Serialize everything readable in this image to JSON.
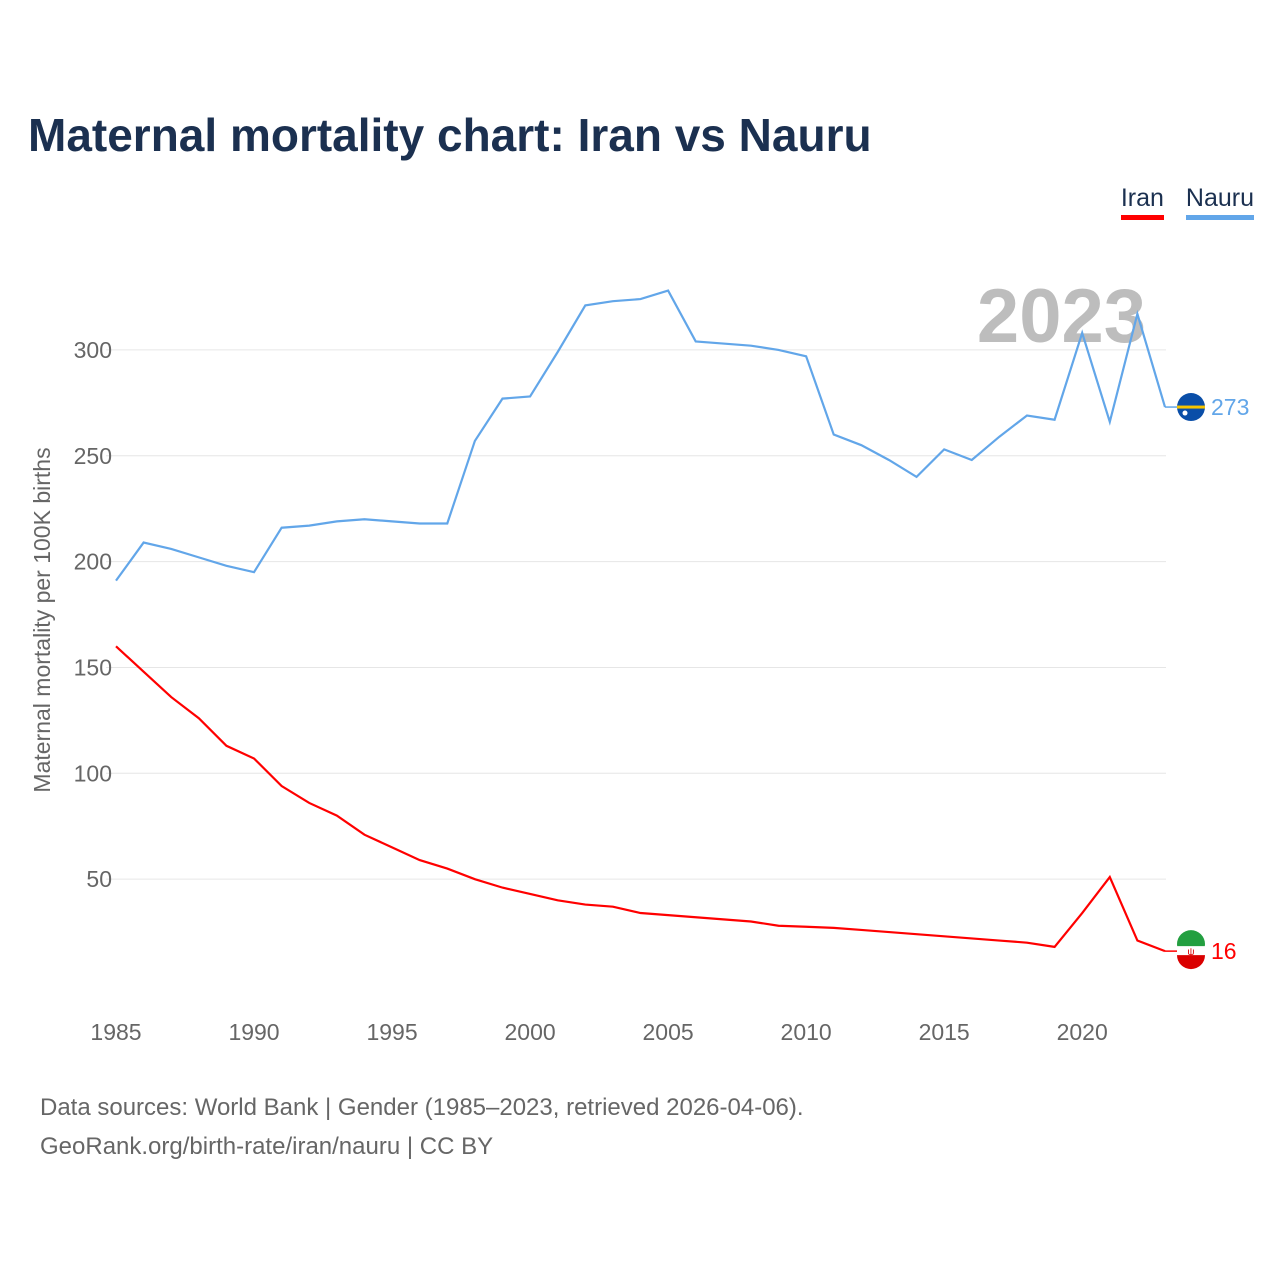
{
  "title": "Maternal mortality chart: Iran vs Nauru",
  "source_line1": "Data sources: World Bank | Gender (1985–2023, retrieved 2026-04-06).",
  "source_line2": "GeoRank.org/birth-rate/iran/nauru | CC BY",
  "chart_data": {
    "type": "line",
    "title": "Maternal mortality chart: Iran vs Nauru",
    "ylabel": "Maternal mortality per 100K births",
    "xlabel": "",
    "year_watermark": "2023",
    "x": [
      1985,
      1986,
      1987,
      1988,
      1989,
      1990,
      1991,
      1992,
      1993,
      1994,
      1995,
      1996,
      1997,
      1998,
      1999,
      2000,
      2001,
      2002,
      2003,
      2004,
      2005,
      2006,
      2007,
      2008,
      2009,
      2010,
      2011,
      2012,
      2013,
      2014,
      2015,
      2016,
      2017,
      2018,
      2019,
      2020,
      2021,
      2022,
      2023
    ],
    "xticks": [
      "1985",
      "1990",
      "1995",
      "2000",
      "2005",
      "2010",
      "2015",
      "2020"
    ],
    "yticks": [
      "50",
      "100",
      "150",
      "200",
      "250",
      "300"
    ],
    "ylim": [
      0,
      330
    ],
    "xlim": [
      1985,
      2023
    ],
    "grid": true,
    "legend_placement": "top-right",
    "series": [
      {
        "name": "Iran",
        "color": "#ff0000",
        "end_label": "16",
        "flag": "iran-flag",
        "values": [
          160,
          148,
          136,
          126,
          113,
          107,
          94,
          86,
          80,
          71,
          65,
          59,
          55,
          50,
          46,
          43,
          40,
          38,
          37,
          34,
          33,
          32,
          31,
          30,
          28,
          27.5,
          27,
          26,
          25,
          24,
          23,
          22,
          21,
          20,
          18,
          34,
          51,
          21,
          16
        ]
      },
      {
        "name": "Nauru",
        "color": "#62a6e9",
        "end_label": "273",
        "flag": "nauru-flag",
        "values": [
          191,
          209,
          206,
          202,
          198,
          195,
          216,
          217,
          219,
          220,
          219,
          218,
          218,
          257,
          277,
          278,
          299,
          321,
          323,
          324,
          328,
          304,
          303,
          302,
          300,
          297,
          260,
          255,
          248,
          240,
          253,
          248,
          259,
          269,
          267,
          308,
          266,
          317,
          273
        ]
      }
    ]
  }
}
